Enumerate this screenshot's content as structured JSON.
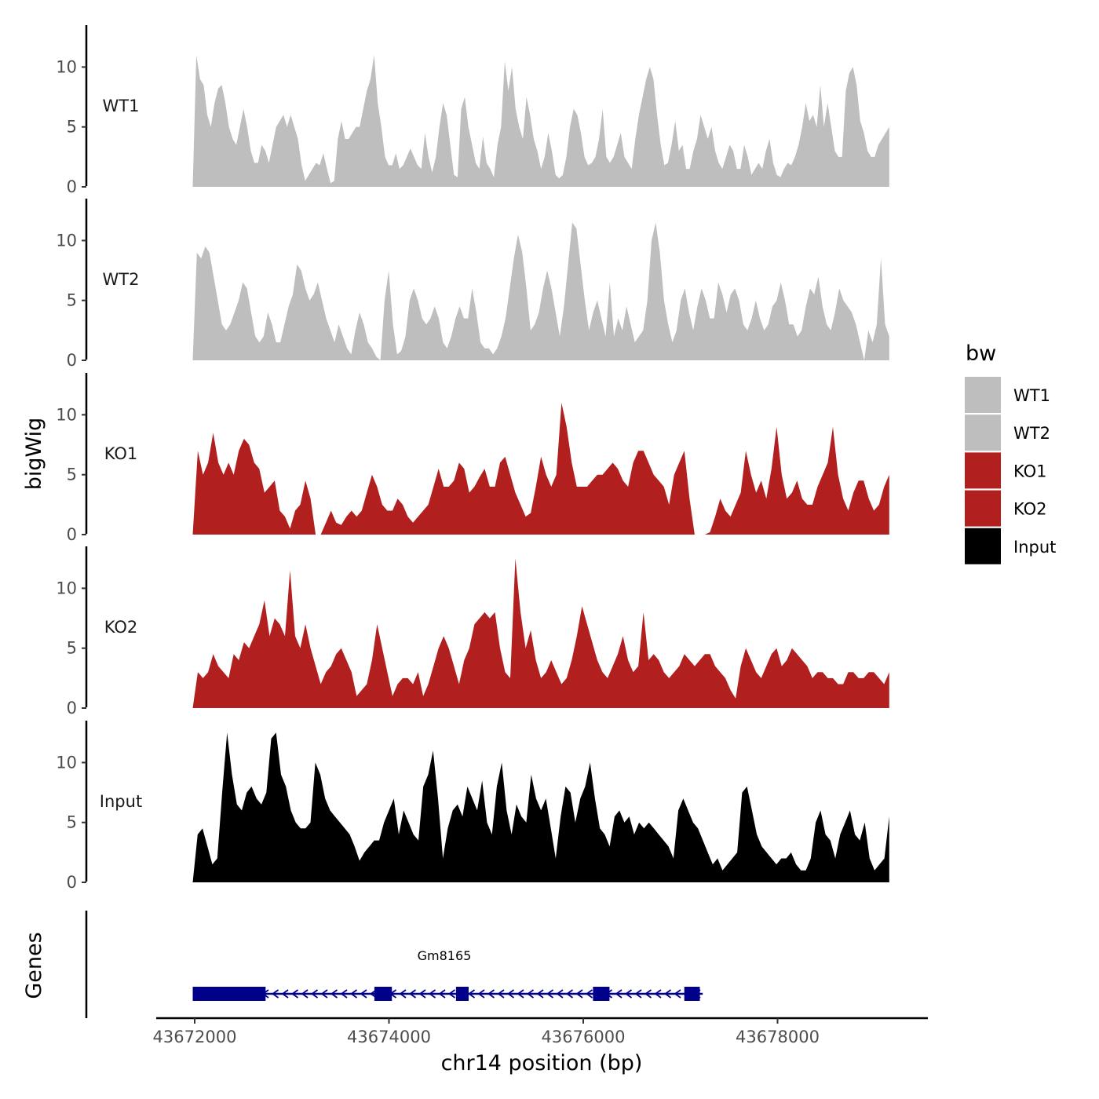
{
  "chart_data": {
    "type": "area",
    "chromosome_label": "chr14 position (bp)",
    "ylabel": "bigWig",
    "genes_label": "Genes",
    "xlim": [
      43671500,
      43679400
    ],
    "ylim": [
      0,
      13.5
    ],
    "x_ticks": [
      43672000,
      43674000,
      43676000,
      43678000
    ],
    "x_tick_labels": [
      "43672000",
      "43674000",
      "43676000",
      "43678000"
    ],
    "y_ticks": [
      0,
      5,
      10
    ],
    "y_tick_labels": [
      "0",
      "5",
      "10"
    ],
    "x_start": 43671980,
    "x_end": 43679150,
    "legend": {
      "title": "bw",
      "entries": [
        {
          "label": "WT1",
          "color": "#bebebe"
        },
        {
          "label": "WT2",
          "color": "#bebebe"
        },
        {
          "label": "KO1",
          "color": "#b21f1f"
        },
        {
          "label": "KO2",
          "color": "#b21f1f"
        },
        {
          "label": "Input",
          "color": "#000000"
        }
      ]
    },
    "series": [
      {
        "name": "WT1",
        "color": "#bebebe",
        "values": [
          0,
          11,
          9,
          8.5,
          6,
          5,
          7,
          8.2,
          8.5,
          7,
          5,
          4,
          3.5,
          5,
          6.5,
          5,
          3,
          2,
          2,
          3.5,
          3,
          2,
          3.5,
          5,
          5.5,
          6,
          5,
          6,
          5,
          4,
          1.8,
          0.5,
          1,
          1.5,
          2,
          1.8,
          2.8,
          1.5,
          0.3,
          0.5,
          4,
          5.5,
          4,
          4,
          4.5,
          5,
          5,
          6.5,
          8,
          9,
          11,
          7,
          5,
          2.5,
          1.8,
          1.8,
          2.8,
          1.5,
          1.8,
          2.5,
          3.2,
          2.5,
          1.8,
          1.5,
          4.5,
          2.5,
          1.2,
          2.5,
          5,
          7,
          6,
          3.5,
          1,
          0.8,
          6.5,
          7.5,
          5,
          3.5,
          2,
          1.5,
          4.2,
          2,
          1.5,
          0.8,
          3.5,
          5,
          10.5,
          8,
          10,
          6.5,
          5,
          4,
          7.5,
          6,
          4,
          3,
          1.5,
          2.5,
          4.5,
          3,
          1,
          0.7,
          1,
          2.5,
          5,
          6.5,
          6,
          4.5,
          2.5,
          1.8,
          2,
          2.5,
          4,
          6.5,
          2.5,
          2,
          2.5,
          3.5,
          4.5,
          2.5,
          2,
          1.5,
          4,
          6,
          7.5,
          9,
          10,
          9,
          6,
          3.5,
          1.8,
          2,
          3.5,
          5.5,
          3,
          3.5,
          1.5,
          1.5,
          3,
          4,
          6,
          5,
          4,
          5,
          3,
          2,
          1.5,
          2.5,
          3.5,
          3,
          1.5,
          1.5,
          3.5,
          2.5,
          1,
          1.5,
          2,
          1.5,
          3,
          4,
          2,
          1,
          0.8,
          1.5,
          2,
          1.8,
          2.5,
          3.5,
          5,
          7,
          5.5,
          6,
          5,
          8.5,
          5,
          7,
          5,
          3,
          2.5,
          2.5,
          8,
          9.5,
          10,
          8.5,
          5.5,
          4.5,
          3,
          2.5,
          2.5,
          3.5,
          4,
          4.5,
          5
        ]
      },
      {
        "name": "WT2",
        "color": "#bebebe",
        "values": [
          0,
          9,
          8.5,
          9.5,
          9,
          7,
          5,
          3,
          2.5,
          3,
          4,
          5,
          6.5,
          6,
          4,
          2,
          1.5,
          2,
          4,
          3,
          1.5,
          1.5,
          3,
          4.5,
          5.5,
          8,
          7.5,
          6,
          5,
          5.5,
          6.5,
          5,
          3.5,
          2.5,
          1.5,
          3,
          2,
          1,
          0.5,
          2.5,
          4,
          3,
          1.5,
          1,
          0.3,
          0,
          5,
          7.5,
          3,
          0.5,
          0.8,
          2,
          5,
          6,
          5,
          3.5,
          3,
          3.5,
          4.5,
          3.5,
          1.5,
          1,
          2,
          3.5,
          4.5,
          3.5,
          3.5,
          6,
          4,
          1.5,
          1,
          1,
          0.5,
          1,
          2,
          3.5,
          6,
          8.5,
          10.5,
          9,
          6,
          2.5,
          3,
          4,
          6,
          7.5,
          6,
          4,
          2,
          4.5,
          8,
          11.5,
          11,
          8,
          5,
          2.5,
          4,
          5,
          3.5,
          2,
          6.5,
          2,
          3.5,
          2.5,
          4.5,
          3,
          1.5,
          2,
          2.5,
          5,
          10,
          11.5,
          9,
          5,
          3,
          1.5,
          2.5,
          5,
          6,
          4,
          2.5,
          4.5,
          6,
          5,
          3.5,
          3.5,
          6.5,
          5.5,
          4,
          5.5,
          6,
          5,
          3,
          2.5,
          3.5,
          5,
          3.5,
          2.5,
          3,
          4.5,
          5,
          6.5,
          5,
          3,
          3,
          2,
          2.5,
          4.5,
          6,
          5.5,
          7,
          4.5,
          3,
          2.5,
          4,
          6,
          5,
          4.5,
          4,
          3,
          1.5,
          0,
          2.5,
          1.5,
          3,
          8.5,
          3,
          2
        ]
      },
      {
        "name": "KO1",
        "color": "#b21f1f",
        "values": [
          0,
          7,
          5,
          6,
          8.5,
          6,
          5,
          6,
          5,
          7,
          8,
          7.5,
          6,
          5.5,
          3.5,
          4,
          4.5,
          2,
          1.5,
          0.5,
          2,
          2.5,
          4.5,
          3,
          0,
          0,
          1,
          2,
          1,
          0.8,
          1.5,
          2,
          1.5,
          2,
          3.5,
          5,
          4,
          2.5,
          2,
          2,
          3,
          2.5,
          1.5,
          1,
          1.5,
          2,
          2.5,
          4,
          5.5,
          4,
          4,
          4.5,
          6,
          5.5,
          3.5,
          4,
          4.8,
          5.5,
          4,
          4,
          6,
          6.5,
          5,
          3.5,
          2.5,
          1.5,
          1.8,
          4,
          6.5,
          5,
          4,
          5,
          11,
          9,
          6,
          4,
          4,
          4,
          4.5,
          5,
          5,
          5.5,
          6,
          5.5,
          4.5,
          4,
          6,
          7,
          7,
          6,
          5,
          4.5,
          4,
          2.5,
          5,
          6,
          7,
          3,
          0,
          0,
          0,
          0.2,
          1.5,
          3,
          2,
          1.5,
          2.5,
          3.5,
          7,
          5,
          3.5,
          4.5,
          3,
          5.5,
          9,
          5,
          3,
          3.5,
          4.5,
          3,
          2.5,
          2.5,
          4,
          5,
          6,
          9,
          5,
          3,
          2,
          3.5,
          4.5,
          4.5,
          3,
          2,
          2.5,
          4,
          5
        ]
      },
      {
        "name": "KO2",
        "color": "#b21f1f",
        "values": [
          0,
          3,
          2.5,
          3,
          4.5,
          3.5,
          3,
          2.5,
          4.5,
          4,
          5.5,
          5,
          6,
          7,
          9,
          6,
          7.5,
          7,
          6,
          11.5,
          6,
          5,
          7,
          5,
          3.5,
          2,
          3,
          3.5,
          4.5,
          5,
          4,
          3,
          1,
          1.5,
          2,
          4,
          7,
          5,
          3,
          1,
          2,
          2.5,
          2.5,
          2,
          3,
          1,
          2,
          3.5,
          5,
          6,
          5,
          3.5,
          2,
          4,
          5,
          7,
          7.5,
          8,
          7.5,
          8,
          5,
          3,
          2.5,
          12.5,
          8,
          5,
          6.5,
          4,
          2.5,
          3,
          4,
          3,
          2,
          2.5,
          4,
          6,
          8.5,
          7,
          5.5,
          4,
          3,
          2.5,
          3.5,
          4.5,
          6,
          4,
          3,
          3.5,
          8,
          4,
          4.5,
          4,
          3,
          2.5,
          3,
          3.5,
          4.5,
          4,
          3.5,
          4,
          4.5,
          4.5,
          3.5,
          3,
          2.5,
          1.5,
          0.8,
          3.5,
          5,
          4,
          3,
          2.5,
          3.5,
          4.5,
          5,
          3.5,
          4,
          5,
          4.5,
          4,
          3.5,
          2.5,
          3,
          3,
          2.5,
          2.5,
          2,
          2,
          3,
          3,
          2.5,
          2.5,
          3,
          3,
          2.5,
          2,
          3
        ]
      },
      {
        "name": "Input",
        "color": "#000000",
        "values": [
          0,
          4,
          4.5,
          3,
          1.5,
          2,
          7.5,
          12.5,
          9,
          6.5,
          6,
          7.5,
          8,
          7,
          6.5,
          7.5,
          12,
          12.5,
          9,
          8,
          6,
          5,
          4.5,
          4.5,
          5,
          10,
          9,
          7,
          6,
          5.5,
          5,
          4.5,
          4,
          3,
          1.8,
          2.5,
          3,
          3.5,
          3.5,
          5,
          6,
          7,
          4,
          6,
          5,
          4,
          3.5,
          8,
          9,
          11,
          7,
          2,
          4.5,
          6,
          6.5,
          5.5,
          8,
          7,
          6,
          8.5,
          5,
          4,
          8,
          10,
          6,
          4,
          6.5,
          5.5,
          5,
          9,
          7,
          6,
          7,
          4.5,
          2,
          5.5,
          8,
          7.5,
          5,
          7,
          8,
          10,
          7,
          4.5,
          4,
          3,
          5.5,
          6,
          5,
          5.5,
          4,
          5,
          4.5,
          5,
          4.5,
          4,
          3.5,
          3,
          2,
          6,
          7,
          6,
          5,
          4.5,
          3.5,
          2.5,
          1.5,
          2,
          1,
          1.5,
          2,
          2.5,
          7.5,
          8,
          6,
          4,
          3,
          2.5,
          2,
          1.5,
          2,
          2,
          2.5,
          1.5,
          1,
          1,
          2,
          5,
          6,
          4,
          3.5,
          2,
          4,
          5,
          6,
          4,
          3.5,
          5,
          2,
          1,
          1.5,
          2,
          5.5
        ]
      }
    ],
    "gene": {
      "name": "Gm8165",
      "strand": "-",
      "start": 43671980,
      "end": 43677230,
      "color": "#00008b",
      "exons": [
        [
          43671980,
          43672730
        ],
        [
          43673850,
          43674030
        ],
        [
          43674690,
          43674820
        ],
        [
          43676100,
          43676270
        ],
        [
          43677040,
          43677200
        ]
      ]
    }
  }
}
